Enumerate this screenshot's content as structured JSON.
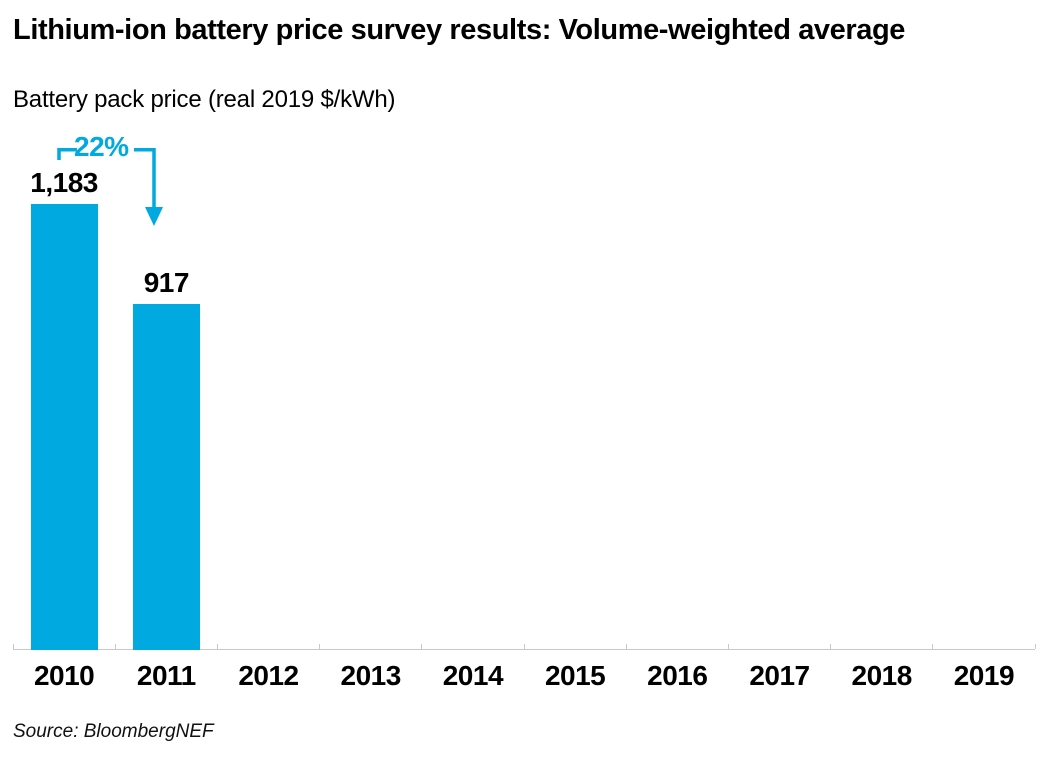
{
  "header": {
    "title": "Lithium-ion battery price survey results: Volume-weighted average",
    "subtitle": "Battery pack price (real 2019 $/kWh)"
  },
  "chart_data": {
    "type": "bar",
    "title": "Lithium-ion battery price survey results: Volume-weighted average",
    "ylabel": "Battery pack price (real 2019 $/kWh)",
    "xlabel": "",
    "categories": [
      "2010",
      "2011",
      "2012",
      "2013",
      "2014",
      "2015",
      "2016",
      "2017",
      "2018",
      "2019"
    ],
    "values": [
      1183,
      917,
      null,
      null,
      null,
      null,
      null,
      null,
      null,
      null
    ],
    "value_labels": [
      "1,183",
      "917",
      null,
      null,
      null,
      null,
      null,
      null,
      null,
      null
    ],
    "ylim": [
      0,
      1183
    ],
    "grid": false,
    "legend": "none",
    "annotation": {
      "label": "22%",
      "from_category": "2010",
      "to_category": "2011",
      "direction": "down"
    }
  },
  "footer": {
    "source": "Source: BloombergNEF"
  },
  "colors": {
    "bar": "#00A9E0",
    "accent": "#00A9E0",
    "axis": "#c9c9c9",
    "text": "#000000"
  }
}
